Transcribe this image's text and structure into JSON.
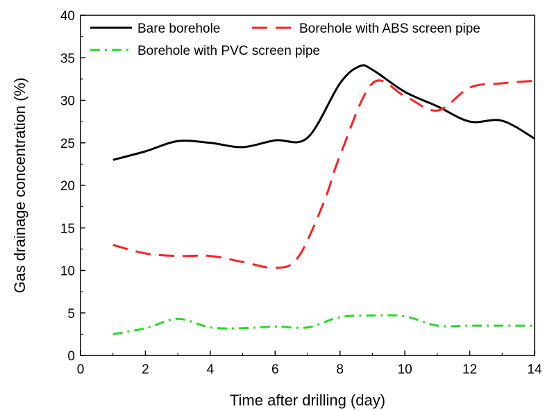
{
  "chart_data": {
    "type": "line",
    "xlabel": "Time after drilling (day)",
    "ylabel": "Gas drainage concentration (%)",
    "xlim": [
      0,
      14
    ],
    "ylim": [
      0,
      40
    ],
    "xticks": [
      0,
      2,
      4,
      6,
      8,
      10,
      12,
      14
    ],
    "yticks": [
      0,
      5,
      10,
      15,
      20,
      25,
      30,
      35,
      40
    ],
    "grid": false,
    "legend_position": "top",
    "series": [
      {
        "name": "Bare borehole",
        "color": "#000000",
        "style": "solid",
        "x": [
          1,
          2,
          3,
          4,
          5,
          6,
          7,
          8,
          8.6,
          9,
          10,
          11,
          12,
          13,
          14
        ],
        "y": [
          23,
          24,
          25.2,
          25,
          24.5,
          25.3,
          25.6,
          32,
          34,
          33.6,
          31,
          29.3,
          27.5,
          27.6,
          25.5
        ]
      },
      {
        "name": "Borehole with ABS screen pipe",
        "color": "#ff2020",
        "style": "dashed",
        "x": [
          1,
          2,
          3,
          4,
          5,
          6,
          6.7,
          7.5,
          8,
          9,
          10,
          11,
          12,
          13,
          14
        ],
        "y": [
          13,
          12,
          11.7,
          11.7,
          11,
          10.3,
          11.5,
          18,
          23.5,
          32,
          30.5,
          28.8,
          31.5,
          32,
          32.3
        ]
      },
      {
        "name": "Borehole with PVC screen pipe",
        "color": "#22dd22",
        "style": "dashdot",
        "x": [
          1,
          2,
          3,
          4,
          5,
          6,
          7,
          8,
          9,
          10,
          11,
          12,
          13,
          14
        ],
        "y": [
          2.5,
          3.2,
          4.3,
          3.3,
          3.2,
          3.4,
          3.3,
          4.5,
          4.7,
          4.6,
          3.5,
          3.5,
          3.5,
          3.5
        ]
      }
    ]
  }
}
